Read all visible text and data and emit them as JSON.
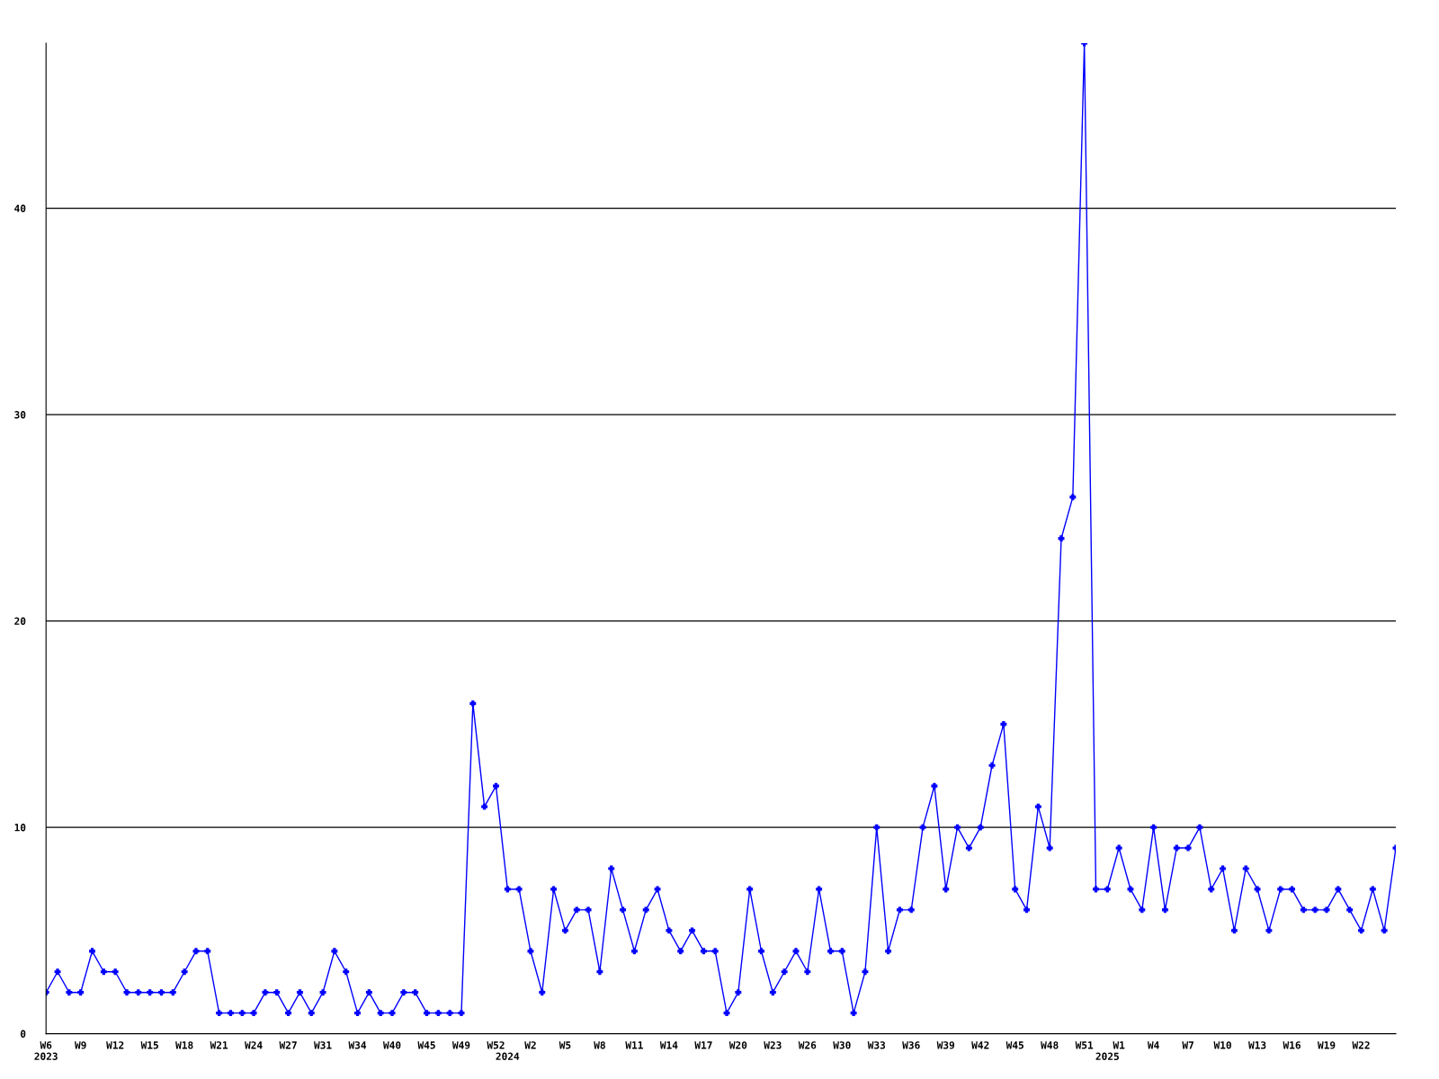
{
  "chart_data": {
    "type": "line",
    "categories": [
      "W6\n2023",
      null,
      null,
      "W9",
      null,
      null,
      "W12",
      null,
      null,
      "W15",
      null,
      null,
      "W18",
      null,
      null,
      "W21",
      null,
      null,
      "W24",
      null,
      null,
      "W27",
      null,
      null,
      "W31",
      null,
      null,
      "W34",
      null,
      null,
      "W40",
      null,
      null,
      "W45",
      null,
      null,
      "W49",
      null,
      null,
      "W52",
      "\n2024",
      null,
      "W2",
      null,
      null,
      "W5",
      null,
      null,
      "W8",
      null,
      null,
      "W11",
      null,
      null,
      "W14",
      null,
      null,
      "W17",
      null,
      null,
      "W20",
      null,
      null,
      "W23",
      null,
      null,
      "W26",
      null,
      null,
      "W30",
      null,
      null,
      "W33",
      null,
      null,
      "W36",
      null,
      null,
      "W39",
      null,
      null,
      "W42",
      null,
      null,
      "W45",
      null,
      null,
      "W48",
      null,
      null,
      "W51",
      null,
      "\n2025",
      "W1",
      null,
      null,
      "W4",
      null,
      null,
      "W7",
      null,
      null,
      "W10",
      null,
      null,
      "W13",
      null,
      null,
      "W16",
      null,
      null,
      "W19",
      null,
      null,
      "W22",
      null,
      null,
      null
    ],
    "series": [
      {
        "color": "#0000ff",
        "values": [
          2,
          3,
          2,
          2,
          4,
          3,
          3,
          2,
          2,
          2,
          2,
          2,
          3,
          4,
          4,
          1,
          1,
          1,
          1,
          2,
          2,
          1,
          2,
          1,
          2,
          4,
          3,
          1,
          2,
          1,
          1,
          2,
          2,
          1,
          1,
          1,
          1,
          16,
          11,
          12,
          7,
          7,
          4,
          2,
          7,
          5,
          6,
          6,
          3,
          8,
          6,
          4,
          6,
          7,
          5,
          4,
          5,
          4,
          4,
          1,
          2,
          7,
          4,
          2,
          3,
          4,
          3,
          7,
          4,
          4,
          1,
          3,
          10,
          4,
          6,
          6,
          10,
          12,
          7,
          10,
          9,
          10,
          13,
          15,
          7,
          6,
          11,
          9,
          24,
          26,
          48,
          7,
          7,
          9,
          7,
          6,
          10,
          6,
          9,
          9,
          10,
          7,
          8,
          5,
          8,
          7,
          5,
          7,
          7,
          6,
          6,
          6,
          7,
          6,
          5,
          7,
          5,
          9
        ]
      }
    ],
    "ylim": [
      0,
      48
    ],
    "yticks": [
      0,
      10,
      20,
      30,
      40
    ],
    "grid": "y",
    "marker": "cross",
    "line_style": "solid"
  }
}
